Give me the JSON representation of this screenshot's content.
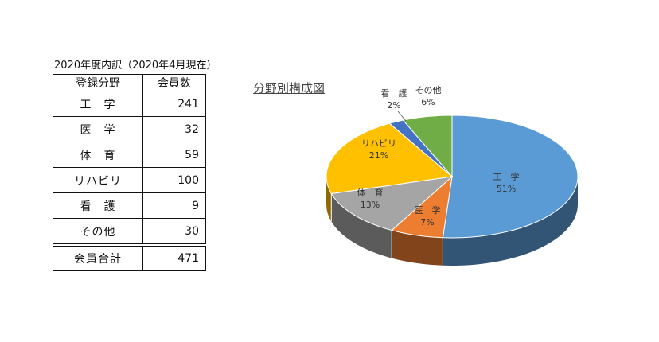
{
  "caption": "2020年度内訳（2020年4月現在）",
  "table": {
    "headers": [
      "登録分野",
      "会員数"
    ],
    "rows": [
      {
        "category": "工　学",
        "count": "241"
      },
      {
        "category": "医　学",
        "count": "32"
      },
      {
        "category": "体　育",
        "count": "59"
      },
      {
        "category": "リハビリ",
        "count": "100"
      },
      {
        "category": "看　護",
        "count": "9"
      },
      {
        "category": "その他",
        "count": "30"
      }
    ],
    "total": {
      "label": "会員合計",
      "count": "471"
    }
  },
  "chart_data": {
    "type": "pie",
    "title": "分野別構成図",
    "categories": [
      "工　学",
      "医　学",
      "体　育",
      "リハビリ",
      "看　護",
      "その他"
    ],
    "values": [
      241,
      32,
      59,
      100,
      9,
      30
    ],
    "percent_labels": [
      "51%",
      "7%",
      "13%",
      "21%",
      "2%",
      "6%"
    ],
    "colors": [
      "#5b9bd5",
      "#ed7d31",
      "#a5a5a5",
      "#ffc000",
      "#4472c4",
      "#70ad47"
    ],
    "style": "3d"
  }
}
